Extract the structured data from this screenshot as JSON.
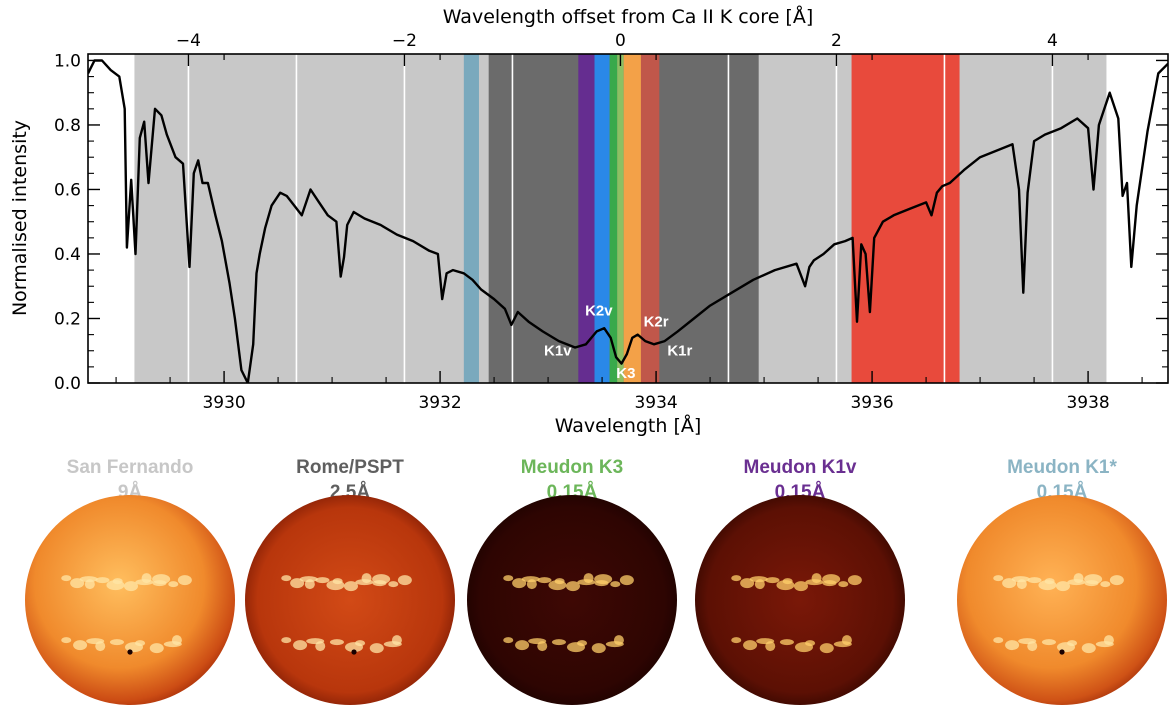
{
  "chart_data": {
    "type": "line",
    "title": "",
    "xlabel": "Wavelength [Å]",
    "ylabel": "Normalised intensity",
    "x2label": "Wavelength offset from Ca II K core [Å]",
    "xlim": [
      3928.74,
      3938.74
    ],
    "ylim": [
      0.0,
      1.02
    ],
    "x2_reference": 3933.67,
    "x_ticks": [
      "3930",
      "3932",
      "3934",
      "3936",
      "3938"
    ],
    "x_tick_values": [
      3930,
      3932,
      3934,
      3936,
      3938
    ],
    "y_ticks": [
      "0.0",
      "0.2",
      "0.4",
      "0.6",
      "0.8",
      "1.0"
    ],
    "y_tick_values": [
      0.0,
      0.2,
      0.4,
      0.6,
      0.8,
      1.0
    ],
    "x2_ticks": [
      "−4",
      "−2",
      "0",
      "2",
      "4"
    ],
    "x2_tick_values": [
      -4,
      -2,
      0,
      2,
      4
    ],
    "grid": false,
    "bands": [
      {
        "x0": 3929.17,
        "x1": 3938.17,
        "color": "#c8c8c8"
      },
      {
        "x0": 3932.45,
        "x1": 3934.95,
        "color": "#6b6b6b"
      },
      {
        "x0": 3932.22,
        "x1": 3932.36,
        "color": "#7aa9bd"
      },
      {
        "x0": 3935.81,
        "x1": 3936.81,
        "color": "#e84a3c"
      },
      {
        "x0": 3933.28,
        "x1": 3933.43,
        "color": "#652d90"
      },
      {
        "x0": 3933.43,
        "x1": 3933.57,
        "color": "#2a88e8"
      },
      {
        "x0": 3933.57,
        "x1": 3933.64,
        "color": "#39a94b"
      },
      {
        "x0": 3933.64,
        "x1": 3933.7,
        "color": "#8cc063"
      },
      {
        "x0": 3933.7,
        "x1": 3933.86,
        "color": "#f3a148"
      },
      {
        "x0": 3933.86,
        "x1": 3934.03,
        "color": "#c0574a"
      }
    ],
    "white_lines": [
      3929.67,
      3930.67,
      3931.67,
      3932.67,
      3934.67,
      3935.67,
      3936.67,
      3937.67
    ],
    "band_labels": [
      {
        "text": "K1v",
        "x": 3933.09,
        "y": 0.085
      },
      {
        "text": "K2v",
        "x": 3933.47,
        "y": 0.21
      },
      {
        "text": "K3",
        "x": 3933.72,
        "y": 0.015
      },
      {
        "text": "K2r",
        "x": 3934.0,
        "y": 0.175
      },
      {
        "text": "K1r",
        "x": 3934.22,
        "y": 0.085
      }
    ],
    "series": [
      {
        "color": "#000000",
        "x": [
          3928.74,
          3928.8,
          3928.87,
          3928.95,
          3929.03,
          3929.08,
          3929.1,
          3929.14,
          3929.18,
          3929.22,
          3929.26,
          3929.3,
          3929.36,
          3929.42,
          3929.47,
          3929.55,
          3929.62,
          3929.68,
          3929.72,
          3929.76,
          3929.8,
          3929.85,
          3929.92,
          3929.98,
          3930.05,
          3930.1,
          3930.16,
          3930.22,
          3930.27,
          3930.3,
          3930.33,
          3930.38,
          3930.44,
          3930.52,
          3930.58,
          3930.65,
          3930.72,
          3930.8,
          3930.88,
          3930.96,
          3931.04,
          3931.08,
          3931.11,
          3931.14,
          3931.2,
          3931.3,
          3931.45,
          3931.6,
          3931.75,
          3931.9,
          3931.98,
          3932.02,
          3932.06,
          3932.12,
          3932.22,
          3932.3,
          3932.38,
          3932.5,
          3932.6,
          3932.66,
          3932.72,
          3932.82,
          3932.95,
          3933.1,
          3933.25,
          3933.35,
          3933.45,
          3933.52,
          3933.58,
          3933.63,
          3933.68,
          3933.73,
          3933.78,
          3933.83,
          3933.9,
          3933.98,
          3934.08,
          3934.2,
          3934.35,
          3934.5,
          3934.7,
          3934.9,
          3935.1,
          3935.3,
          3935.38,
          3935.42,
          3935.46,
          3935.55,
          3935.65,
          3935.75,
          3935.82,
          3935.86,
          3935.9,
          3935.94,
          3935.98,
          3936.02,
          3936.1,
          3936.2,
          3936.35,
          3936.5,
          3936.55,
          3936.6,
          3936.65,
          3936.72,
          3936.85,
          3937.0,
          3937.15,
          3937.3,
          3937.36,
          3937.4,
          3937.44,
          3937.5,
          3937.6,
          3937.75,
          3937.9,
          3938.0,
          3938.05,
          3938.1,
          3938.2,
          3938.28,
          3938.32,
          3938.36,
          3938.4,
          3938.45,
          3938.55,
          3938.65,
          3938.74
        ],
        "y": [
          0.96,
          1.0,
          1.0,
          0.97,
          0.95,
          0.85,
          0.42,
          0.63,
          0.4,
          0.76,
          0.81,
          0.62,
          0.85,
          0.83,
          0.77,
          0.7,
          0.68,
          0.36,
          0.65,
          0.69,
          0.62,
          0.62,
          0.52,
          0.44,
          0.31,
          0.2,
          0.04,
          0.0,
          0.12,
          0.34,
          0.4,
          0.48,
          0.55,
          0.59,
          0.58,
          0.55,
          0.52,
          0.6,
          0.56,
          0.52,
          0.5,
          0.33,
          0.39,
          0.49,
          0.53,
          0.51,
          0.49,
          0.46,
          0.44,
          0.41,
          0.4,
          0.26,
          0.34,
          0.35,
          0.34,
          0.32,
          0.29,
          0.26,
          0.23,
          0.18,
          0.22,
          0.19,
          0.16,
          0.13,
          0.11,
          0.12,
          0.16,
          0.17,
          0.14,
          0.08,
          0.06,
          0.09,
          0.14,
          0.15,
          0.13,
          0.12,
          0.13,
          0.16,
          0.2,
          0.24,
          0.28,
          0.32,
          0.35,
          0.37,
          0.3,
          0.36,
          0.38,
          0.4,
          0.43,
          0.44,
          0.45,
          0.19,
          0.43,
          0.4,
          0.22,
          0.45,
          0.5,
          0.52,
          0.54,
          0.56,
          0.52,
          0.59,
          0.61,
          0.62,
          0.66,
          0.7,
          0.72,
          0.74,
          0.6,
          0.28,
          0.59,
          0.75,
          0.77,
          0.79,
          0.82,
          0.79,
          0.6,
          0.8,
          0.9,
          0.82,
          0.58,
          0.62,
          0.36,
          0.55,
          0.78,
          0.96,
          0.99
        ]
      }
    ]
  },
  "disks": [
    {
      "title": "San Fernando",
      "subtitle": "9Å",
      "color": "#c7c7c7"
    },
    {
      "title": "Rome/PSPT",
      "subtitle": "2.5Å",
      "color": "#5f5f5f"
    },
    {
      "title": "Meudon K3",
      "subtitle": "0.15Å",
      "color": "#6cb65a"
    },
    {
      "title": "Meudon K1v",
      "subtitle": "0.15Å",
      "color": "#6a2f91"
    },
    {
      "title": "Meudon K1*",
      "subtitle": "0.15Å",
      "color": "#8bb4c4"
    }
  ]
}
